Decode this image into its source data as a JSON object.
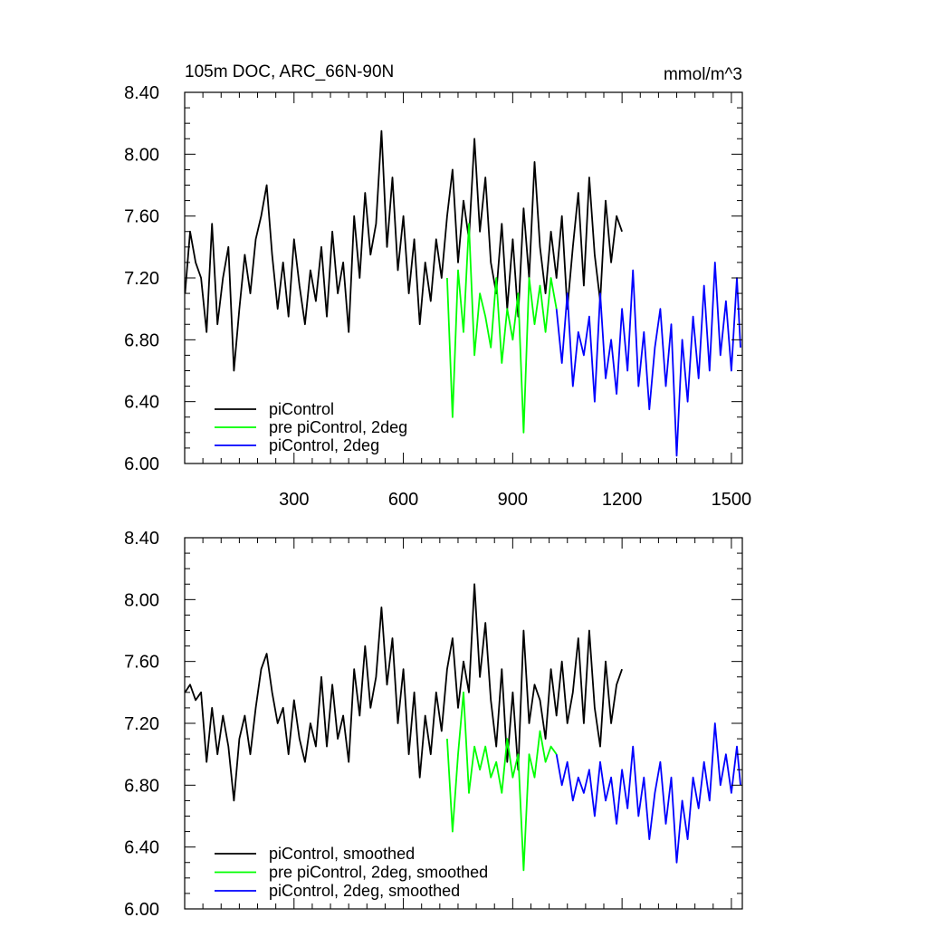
{
  "chart_data": [
    {
      "type": "line",
      "title": "105m DOC, ARC_66N-90N",
      "units": "mmol/m^3",
      "xlim": [
        0,
        1530
      ],
      "ylim": [
        6.0,
        8.4
      ],
      "xticks": [
        300,
        600,
        900,
        1200,
        1500
      ],
      "xtick_labels": [
        "300",
        "600",
        "900",
        "1200",
        "1500"
      ],
      "yticks": [
        6.0,
        6.4,
        6.8,
        7.2,
        7.6,
        8.0,
        8.4
      ],
      "ytick_labels": [
        "6.00",
        "6.40",
        "6.80",
        "7.20",
        "7.60",
        "8.00",
        "8.40"
      ],
      "legend_position": "bottom-left",
      "series": [
        {
          "name": "piControl",
          "color": "#000000",
          "x": [
            1,
            15,
            30,
            45,
            60,
            75,
            90,
            105,
            120,
            135,
            150,
            165,
            180,
            195,
            210,
            225,
            240,
            255,
            270,
            285,
            300,
            315,
            330,
            345,
            360,
            375,
            390,
            405,
            420,
            435,
            450,
            465,
            480,
            495,
            510,
            525,
            540,
            555,
            570,
            585,
            600,
            615,
            630,
            645,
            660,
            675,
            690,
            705,
            720,
            735,
            750,
            765,
            780,
            795,
            810,
            825,
            840,
            855,
            870,
            885,
            900,
            915,
            930,
            945,
            960,
            975,
            990,
            1005,
            1020,
            1035,
            1050,
            1065,
            1080,
            1095,
            1110,
            1125,
            1140,
            1155,
            1170,
            1185,
            1200
          ],
          "y": [
            7.1,
            7.5,
            7.3,
            7.2,
            6.85,
            7.55,
            6.9,
            7.2,
            7.4,
            6.6,
            7.0,
            7.35,
            7.1,
            7.45,
            7.6,
            7.8,
            7.35,
            7.0,
            7.3,
            6.95,
            7.45,
            7.15,
            6.9,
            7.25,
            7.05,
            7.4,
            6.95,
            7.5,
            7.1,
            7.3,
            6.85,
            7.6,
            7.2,
            7.75,
            7.35,
            7.55,
            8.15,
            7.4,
            7.85,
            7.25,
            7.6,
            7.1,
            7.45,
            6.9,
            7.3,
            7.05,
            7.45,
            7.2,
            7.6,
            7.9,
            7.3,
            7.7,
            7.45,
            8.1,
            7.5,
            7.85,
            7.3,
            7.1,
            7.55,
            7.0,
            7.45,
            6.95,
            7.65,
            7.2,
            7.95,
            7.4,
            7.1,
            7.5,
            7.2,
            7.6,
            7.0,
            7.4,
            7.75,
            7.15,
            7.85,
            7.35,
            7.05,
            7.7,
            7.3,
            7.6,
            7.5
          ]
        },
        {
          "name": "pre piControl, 2deg",
          "color": "#00ff00",
          "x": [
            720,
            735,
            750,
            765,
            780,
            795,
            810,
            825,
            840,
            855,
            870,
            885,
            900,
            915,
            930,
            945,
            960,
            975,
            990,
            1005,
            1020
          ],
          "y": [
            7.2,
            6.3,
            7.25,
            6.85,
            7.55,
            6.7,
            7.1,
            6.95,
            6.75,
            7.2,
            6.65,
            7.0,
            6.8,
            7.1,
            6.2,
            7.2,
            6.9,
            7.15,
            6.85,
            7.2,
            7.0
          ]
        },
        {
          "name": "piControl, 2deg",
          "color": "#0000ff",
          "x": [
            1020,
            1035,
            1050,
            1065,
            1080,
            1095,
            1110,
            1125,
            1140,
            1155,
            1170,
            1185,
            1200,
            1215,
            1230,
            1245,
            1260,
            1275,
            1290,
            1305,
            1320,
            1335,
            1350,
            1365,
            1380,
            1395,
            1410,
            1425,
            1440,
            1455,
            1470,
            1485,
            1500,
            1515,
            1525
          ],
          "y": [
            7.0,
            6.65,
            7.1,
            6.5,
            6.85,
            6.7,
            6.95,
            6.4,
            7.1,
            6.55,
            6.8,
            6.45,
            7.0,
            6.6,
            7.25,
            6.5,
            6.85,
            6.35,
            6.75,
            7.0,
            6.5,
            6.9,
            6.05,
            6.8,
            6.4,
            6.95,
            6.55,
            7.15,
            6.6,
            7.3,
            6.7,
            7.05,
            6.6,
            7.2,
            6.75
          ]
        }
      ]
    },
    {
      "type": "line",
      "xlim": [
        0,
        1530
      ],
      "ylim": [
        6.0,
        8.4
      ],
      "xticks": [
        300,
        600,
        900,
        1200,
        1500
      ],
      "yticks": [
        6.0,
        6.4,
        6.8,
        7.2,
        7.6,
        8.0,
        8.4
      ],
      "ytick_labels": [
        "6.00",
        "6.40",
        "6.80",
        "7.20",
        "7.60",
        "8.00",
        "8.40"
      ],
      "legend_position": "bottom-left",
      "series": [
        {
          "name": "piControl, smoothed",
          "color": "#000000",
          "x": [
            1,
            15,
            30,
            45,
            60,
            75,
            90,
            105,
            120,
            135,
            150,
            165,
            180,
            195,
            210,
            225,
            240,
            255,
            270,
            285,
            300,
            315,
            330,
            345,
            360,
            375,
            390,
            405,
            420,
            435,
            450,
            465,
            480,
            495,
            510,
            525,
            540,
            555,
            570,
            585,
            600,
            615,
            630,
            645,
            660,
            675,
            690,
            705,
            720,
            735,
            750,
            765,
            780,
            795,
            810,
            825,
            840,
            855,
            870,
            885,
            900,
            915,
            930,
            945,
            960,
            975,
            990,
            1005,
            1020,
            1035,
            1050,
            1065,
            1080,
            1095,
            1110,
            1125,
            1140,
            1155,
            1170,
            1185,
            1200
          ],
          "y": [
            7.4,
            7.45,
            7.35,
            7.4,
            6.95,
            7.3,
            7.0,
            7.25,
            7.05,
            6.7,
            7.1,
            7.25,
            7.0,
            7.3,
            7.55,
            7.65,
            7.4,
            7.2,
            7.3,
            7.0,
            7.35,
            7.1,
            6.95,
            7.2,
            7.05,
            7.5,
            7.05,
            7.45,
            7.1,
            7.25,
            6.95,
            7.55,
            7.25,
            7.7,
            7.3,
            7.5,
            7.95,
            7.45,
            7.75,
            7.2,
            7.55,
            7.0,
            7.4,
            6.85,
            7.25,
            7.0,
            7.4,
            7.15,
            7.55,
            7.75,
            7.3,
            7.6,
            7.4,
            8.1,
            7.5,
            7.85,
            7.35,
            7.05,
            7.55,
            6.95,
            7.4,
            6.9,
            7.8,
            7.2,
            7.45,
            7.35,
            7.1,
            7.55,
            7.25,
            7.6,
            7.2,
            7.4,
            7.75,
            7.2,
            7.8,
            7.3,
            7.05,
            7.6,
            7.2,
            7.45,
            7.55
          ]
        },
        {
          "name": "pre piControl, 2deg, smoothed",
          "color": "#00ff00",
          "x": [
            720,
            735,
            750,
            765,
            780,
            795,
            810,
            825,
            840,
            855,
            870,
            885,
            900,
            915,
            930,
            945,
            960,
            975,
            990,
            1005,
            1020
          ],
          "y": [
            7.1,
            6.5,
            7.0,
            7.4,
            6.75,
            7.05,
            6.9,
            7.05,
            6.85,
            6.95,
            6.75,
            7.1,
            6.85,
            7.0,
            6.25,
            7.0,
            6.85,
            7.15,
            6.95,
            7.05,
            7.0
          ]
        },
        {
          "name": "piControl, 2deg, smoothed",
          "color": "#0000ff",
          "x": [
            1020,
            1035,
            1050,
            1065,
            1080,
            1095,
            1110,
            1125,
            1140,
            1155,
            1170,
            1185,
            1200,
            1215,
            1230,
            1245,
            1260,
            1275,
            1290,
            1305,
            1320,
            1335,
            1350,
            1365,
            1380,
            1395,
            1410,
            1425,
            1440,
            1455,
            1470,
            1485,
            1500,
            1515,
            1525
          ],
          "y": [
            7.0,
            6.8,
            6.95,
            6.7,
            6.85,
            6.75,
            6.9,
            6.6,
            6.95,
            6.7,
            6.85,
            6.55,
            6.9,
            6.65,
            7.05,
            6.6,
            6.85,
            6.45,
            6.75,
            6.95,
            6.55,
            6.85,
            6.3,
            6.7,
            6.45,
            6.85,
            6.65,
            6.95,
            6.7,
            7.2,
            6.8,
            7.0,
            6.75,
            7.05,
            6.8
          ]
        }
      ]
    }
  ]
}
